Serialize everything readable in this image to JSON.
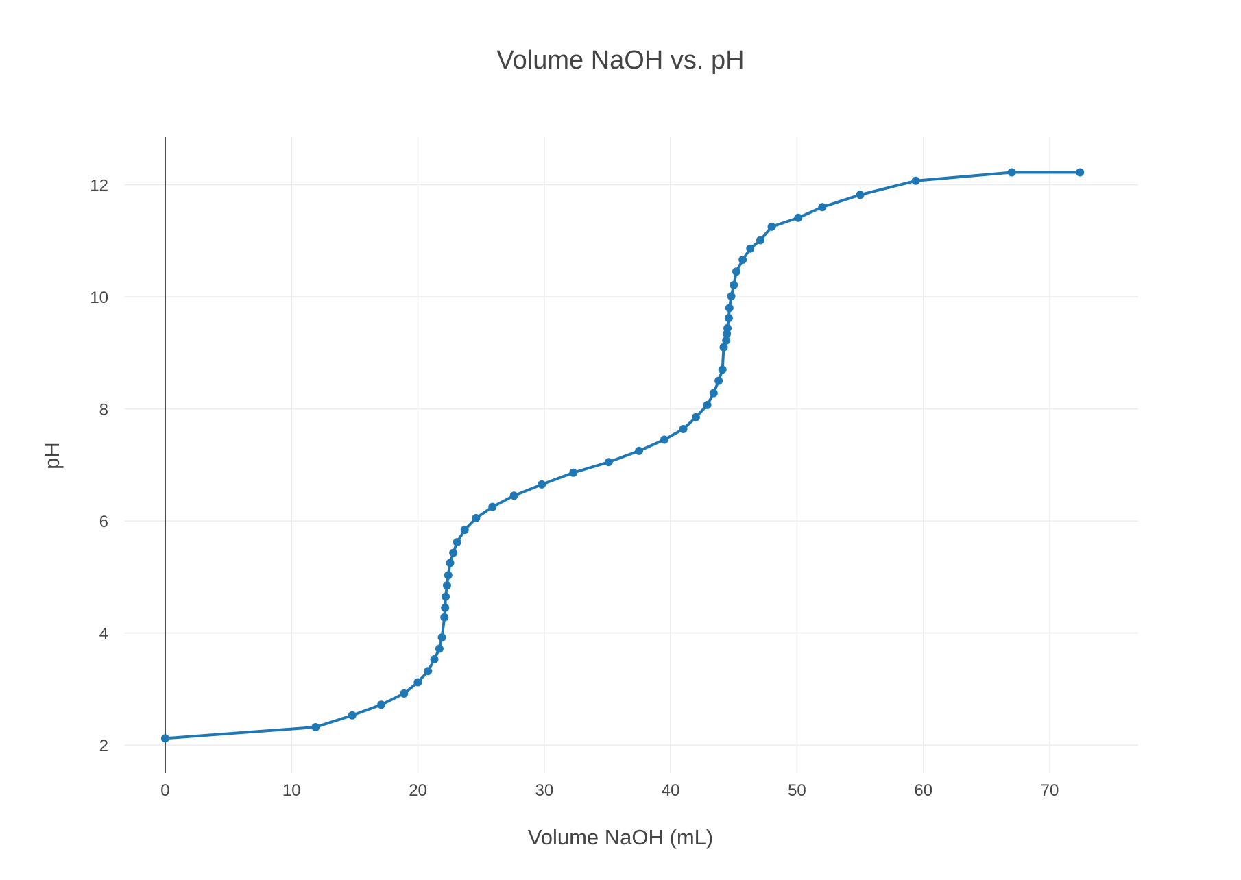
{
  "chart_data": {
    "type": "line",
    "title": "Volume NaOH vs. pH",
    "xlabel": "Volume NaOH (mL)",
    "ylabel": "pH",
    "xlim": [
      -3.2,
      77.0
    ],
    "ylim": [
      1.5,
      12.85
    ],
    "x_ticks": [
      0,
      10,
      20,
      30,
      40,
      50,
      60,
      70
    ],
    "y_ticks": [
      2,
      4,
      6,
      8,
      10,
      12
    ],
    "grid": true,
    "color": "#1f77b4",
    "series": [
      {
        "mode": "lines+markers",
        "x": [
          0,
          11.9,
          14.8,
          17.1,
          18.9,
          20.0,
          20.8,
          21.3,
          21.7,
          21.9,
          22.1,
          22.15,
          22.2,
          22.3,
          22.4,
          22.55,
          22.8,
          23.1,
          23.7,
          24.6,
          25.9,
          27.6,
          29.8,
          32.3,
          35.1,
          37.5,
          39.5,
          41.0,
          42.0,
          42.9,
          43.4,
          43.8,
          44.1,
          44.2,
          44.4,
          44.45,
          44.5,
          44.6,
          44.65,
          44.8,
          45.0,
          45.2,
          45.7,
          46.3,
          47.1,
          48.0,
          50.1,
          52.0,
          55.0,
          59.4,
          67.0,
          72.4
        ],
        "y": [
          2.12,
          2.32,
          2.53,
          2.72,
          2.92,
          3.12,
          3.32,
          3.53,
          3.72,
          3.92,
          4.28,
          4.45,
          4.65,
          4.85,
          5.03,
          5.25,
          5.43,
          5.62,
          5.84,
          6.05,
          6.25,
          6.45,
          6.65,
          6.86,
          7.05,
          7.25,
          7.45,
          7.64,
          7.85,
          8.07,
          8.28,
          8.5,
          8.7,
          9.1,
          9.22,
          9.34,
          9.44,
          9.62,
          9.8,
          10.01,
          10.21,
          10.45,
          10.66,
          10.86,
          11.01,
          11.25,
          11.41,
          11.6,
          11.82,
          12.07,
          12.22,
          12.22
        ]
      }
    ]
  }
}
